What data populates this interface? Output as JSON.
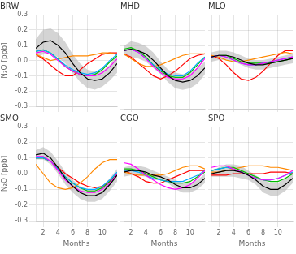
{
  "chart_data": [
    {
      "type": "line",
      "title": "BRW",
      "x": [
        1,
        2,
        3,
        4,
        5,
        6,
        7,
        8,
        9,
        10,
        11,
        12
      ],
      "xlim": [
        1,
        12
      ],
      "ylim": [
        -0.3,
        0.3
      ],
      "xticks": [
        2,
        4,
        6,
        8,
        10
      ],
      "yticks": [
        -0.3,
        -0.2,
        -0.1,
        {
          "value": 0.0,
          "label": "0.0"
        },
        0.1,
        0.2,
        0.3
      ],
      "grid": true,
      "tick_labels": "y",
      "ylabel": "N₂O [ppb]",
      "series": [
        {
          "type": "band",
          "color": "#b0b0b0",
          "lower": [
            0.02,
            0.04,
            0.05,
            0.02,
            -0.02,
            -0.08,
            -0.14,
            -0.18,
            -0.19,
            -0.17,
            -0.13,
            -0.08
          ],
          "upper": [
            0.14,
            0.2,
            0.21,
            0.18,
            0.12,
            0.04,
            -0.02,
            -0.06,
            -0.07,
            -0.07,
            -0.03,
            0.04
          ]
        },
        {
          "color": "#ff0000",
          "values": [
            0.04,
            0.01,
            -0.03,
            -0.07,
            -0.1,
            -0.1,
            -0.06,
            -0.02,
            0.01,
            0.04,
            0.05,
            0.05
          ]
        },
        {
          "color": "#ff8800",
          "values": [
            0.04,
            0.02,
            0.0,
            0.01,
            0.02,
            0.03,
            0.03,
            0.03,
            0.04,
            0.05,
            0.05,
            0.04
          ]
        },
        {
          "color": "#00bb00",
          "values": [
            0.06,
            0.07,
            0.05,
            0.01,
            -0.04,
            -0.07,
            -0.09,
            -0.1,
            -0.09,
            -0.06,
            -0.01,
            0.03
          ]
        },
        {
          "color": "#00aaff",
          "values": [
            0.06,
            0.07,
            0.05,
            0.01,
            -0.03,
            -0.06,
            -0.08,
            -0.09,
            -0.08,
            -0.05,
            0.0,
            0.04
          ]
        },
        {
          "color": "#ff00ff",
          "values": [
            0.05,
            0.06,
            0.04,
            0.0,
            -0.04,
            -0.07,
            -0.09,
            -0.1,
            -0.1,
            -0.08,
            -0.04,
            0.01
          ]
        },
        {
          "color": "#000000",
          "values": [
            0.08,
            0.12,
            0.13,
            0.1,
            0.05,
            -0.02,
            -0.08,
            -0.12,
            -0.13,
            -0.12,
            -0.08,
            -0.02
          ]
        }
      ]
    },
    {
      "type": "line",
      "title": "MHD",
      "x": [
        1,
        2,
        3,
        4,
        5,
        6,
        7,
        8,
        9,
        10,
        11,
        12
      ],
      "xlim": [
        1,
        12
      ],
      "ylim": [
        -0.3,
        0.3
      ],
      "xticks": [
        2,
        4,
        6,
        8,
        10
      ],
      "yticks": [
        -0.3,
        -0.2,
        -0.1,
        {
          "value": 0.0,
          "label": "0.0"
        },
        0.1,
        0.2,
        0.3
      ],
      "grid": true,
      "tick_labels": false,
      "series": [
        {
          "type": "band",
          "color": "#b0b0b0",
          "lower": [
            0.04,
            0.03,
            0.02,
            0.0,
            -0.04,
            -0.08,
            -0.13,
            -0.17,
            -0.18,
            -0.17,
            -0.14,
            -0.08
          ],
          "upper": [
            0.1,
            0.13,
            0.12,
            0.1,
            0.06,
            0.0,
            -0.05,
            -0.07,
            -0.08,
            -0.07,
            -0.04,
            0.0
          ]
        },
        {
          "color": "#ff0000",
          "values": [
            0.05,
            0.03,
            -0.01,
            -0.05,
            -0.09,
            -0.11,
            -0.09,
            -0.06,
            -0.02,
            0.02,
            0.04,
            0.05
          ]
        },
        {
          "color": "#ff8800",
          "values": [
            0.05,
            0.02,
            -0.01,
            -0.03,
            -0.03,
            -0.02,
            0.0,
            0.02,
            0.04,
            0.05,
            0.05,
            0.05
          ]
        },
        {
          "color": "#00bb00",
          "values": [
            0.08,
            0.09,
            0.07,
            0.03,
            -0.02,
            -0.06,
            -0.09,
            -0.1,
            -0.1,
            -0.07,
            -0.02,
            0.03
          ]
        },
        {
          "color": "#00aaff",
          "values": [
            0.07,
            0.08,
            0.06,
            0.02,
            -0.02,
            -0.05,
            -0.08,
            -0.09,
            -0.09,
            -0.06,
            -0.01,
            0.03
          ]
        },
        {
          "color": "#ff00ff",
          "values": [
            0.07,
            0.08,
            0.06,
            0.02,
            -0.03,
            -0.07,
            -0.1,
            -0.11,
            -0.11,
            -0.09,
            -0.04,
            0.02
          ]
        },
        {
          "color": "#000000",
          "values": [
            0.07,
            0.08,
            0.07,
            0.05,
            0.01,
            -0.04,
            -0.09,
            -0.12,
            -0.13,
            -0.12,
            -0.09,
            -0.04
          ]
        }
      ]
    },
    {
      "type": "line",
      "title": "MLO",
      "x": [
        1,
        2,
        3,
        4,
        5,
        6,
        7,
        8,
        9,
        10,
        11,
        12
      ],
      "xlim": [
        1,
        12
      ],
      "ylim": [
        -0.3,
        0.3
      ],
      "xticks": [
        2,
        4,
        6,
        8,
        10
      ],
      "yticks": [
        -0.3,
        -0.2,
        -0.1,
        {
          "value": 0.0,
          "label": "0.0"
        },
        0.1,
        0.2,
        0.3
      ],
      "grid": true,
      "tick_labels": false,
      "series": [
        {
          "type": "band",
          "color": "#b0b0b0",
          "lower": [
            0.0,
            0.01,
            0.01,
            0.0,
            -0.02,
            -0.04,
            -0.05,
            -0.05,
            -0.04,
            -0.03,
            -0.02,
            -0.01
          ],
          "upper": [
            0.06,
            0.07,
            0.07,
            0.06,
            0.04,
            0.02,
            0.01,
            0.01,
            0.02,
            0.03,
            0.04,
            0.05
          ]
        },
        {
          "color": "#ff0000",
          "values": [
            0.04,
            0.02,
            -0.02,
            -0.07,
            -0.11,
            -0.12,
            -0.1,
            -0.06,
            -0.01,
            0.04,
            0.07,
            0.07
          ]
        },
        {
          "color": "#ff8800",
          "values": [
            0.04,
            0.03,
            0.01,
            0.0,
            0.0,
            0.01,
            0.02,
            0.03,
            0.04,
            0.05,
            0.06,
            0.05
          ]
        },
        {
          "color": "#00bb00",
          "values": [
            0.03,
            0.04,
            0.04,
            0.02,
            0.0,
            -0.01,
            -0.01,
            -0.01,
            -0.01,
            0.0,
            0.01,
            0.02
          ]
        },
        {
          "color": "#00aaff",
          "values": [
            0.03,
            0.04,
            0.03,
            0.01,
            -0.01,
            -0.02,
            -0.02,
            -0.01,
            0.0,
            0.01,
            0.02,
            0.03
          ]
        },
        {
          "color": "#ff00ff",
          "values": [
            0.03,
            0.04,
            0.03,
            0.01,
            -0.01,
            -0.02,
            -0.02,
            -0.01,
            0.0,
            0.01,
            0.02,
            0.03
          ]
        },
        {
          "color": "#000000",
          "values": [
            0.03,
            0.04,
            0.04,
            0.03,
            0.01,
            -0.01,
            -0.02,
            -0.02,
            -0.01,
            0.0,
            0.01,
            0.02
          ]
        }
      ]
    },
    {
      "type": "line",
      "title": "SMO",
      "x": [
        1,
        2,
        3,
        4,
        5,
        6,
        7,
        8,
        9,
        10,
        11,
        12
      ],
      "xlim": [
        1,
        12
      ],
      "ylim": [
        -0.3,
        0.3
      ],
      "xticks": [
        2,
        4,
        6,
        8,
        10
      ],
      "yticks": [
        -0.3,
        -0.2,
        -0.1,
        {
          "value": 0.0,
          "label": "0.0"
        },
        0.1,
        0.2,
        0.3
      ],
      "grid": true,
      "tick_labels": true,
      "xlabel": "Months",
      "ylabel": "N₂O [ppb]",
      "series": [
        {
          "type": "band",
          "color": "#b0b0b0",
          "lower": [
            0.09,
            0.09,
            0.06,
            0.0,
            -0.07,
            -0.12,
            -0.16,
            -0.18,
            -0.18,
            -0.16,
            -0.11,
            -0.05
          ],
          "upper": [
            0.15,
            0.17,
            0.14,
            0.08,
            0.01,
            -0.04,
            -0.08,
            -0.1,
            -0.1,
            -0.08,
            -0.03,
            0.03
          ]
        },
        {
          "color": "#ff0000",
          "values": [
            0.1,
            0.1,
            0.08,
            0.04,
            0.0,
            -0.03,
            -0.06,
            -0.08,
            -0.09,
            -0.08,
            -0.05,
            -0.01
          ]
        },
        {
          "color": "#ff8800",
          "values": [
            0.06,
            0.0,
            -0.06,
            -0.09,
            -0.1,
            -0.09,
            -0.06,
            -0.02,
            0.03,
            0.07,
            0.09,
            0.09
          ]
        },
        {
          "color": "#00bb00",
          "values": [
            0.1,
            0.1,
            0.08,
            0.03,
            -0.02,
            -0.06,
            -0.09,
            -0.11,
            -0.11,
            -0.09,
            -0.05,
            0.0
          ]
        },
        {
          "color": "#00aaff",
          "values": [
            0.1,
            0.1,
            0.08,
            0.03,
            -0.02,
            -0.06,
            -0.09,
            -0.1,
            -0.1,
            -0.08,
            -0.04,
            0.01
          ]
        },
        {
          "color": "#ff00ff",
          "values": [
            0.11,
            0.11,
            0.08,
            0.02,
            -0.04,
            -0.08,
            -0.11,
            -0.12,
            -0.12,
            -0.1,
            -0.06,
            0.0
          ]
        },
        {
          "color": "#000000",
          "values": [
            0.12,
            0.13,
            0.1,
            0.04,
            -0.03,
            -0.08,
            -0.12,
            -0.14,
            -0.14,
            -0.12,
            -0.07,
            -0.01
          ]
        }
      ]
    },
    {
      "type": "line",
      "title": "CGO",
      "x": [
        1,
        2,
        3,
        4,
        5,
        6,
        7,
        8,
        9,
        10,
        11,
        12
      ],
      "xlim": [
        1,
        12
      ],
      "ylim": [
        -0.3,
        0.3
      ],
      "xticks": [
        2,
        4,
        6,
        8,
        10
      ],
      "yticks": [
        -0.3,
        -0.2,
        -0.1,
        {
          "value": 0.0,
          "label": "0.0"
        },
        0.1,
        0.2,
        0.3
      ],
      "grid": true,
      "tick_labels": "x",
      "xlabel": "Months",
      "series": [
        {
          "type": "band",
          "color": "#b0b0b0",
          "lower": [
            -0.02,
            -0.01,
            -0.01,
            -0.02,
            -0.04,
            -0.04,
            -0.06,
            -0.1,
            -0.12,
            -0.12,
            -0.1,
            -0.06
          ],
          "upper": [
            0.04,
            0.05,
            0.05,
            0.04,
            0.02,
            0.0,
            -0.02,
            -0.04,
            -0.06,
            -0.06,
            -0.04,
            0.0
          ]
        },
        {
          "color": "#ff0000",
          "values": [
            0.02,
            0.0,
            -0.02,
            -0.05,
            -0.06,
            -0.06,
            -0.04,
            -0.02,
            0.0,
            0.02,
            0.02,
            0.02
          ]
        },
        {
          "color": "#ff8800",
          "values": [
            0.01,
            0.0,
            -0.01,
            -0.01,
            -0.01,
            -0.01,
            0.0,
            0.02,
            0.04,
            0.05,
            0.05,
            0.03
          ]
        },
        {
          "color": "#00bb00",
          "values": [
            0.03,
            0.03,
            0.02,
            0.0,
            -0.02,
            -0.04,
            -0.05,
            -0.06,
            -0.06,
            -0.05,
            -0.02,
            0.01
          ]
        },
        {
          "color": "#00aaff",
          "values": [
            0.02,
            0.02,
            0.01,
            -0.01,
            -0.03,
            -0.04,
            -0.05,
            -0.05,
            -0.05,
            -0.03,
            -0.01,
            0.02
          ]
        },
        {
          "color": "#ff00ff",
          "values": [
            0.07,
            0.06,
            0.03,
            -0.01,
            -0.04,
            -0.07,
            -0.09,
            -0.1,
            -0.09,
            -0.07,
            -0.03,
            0.02
          ]
        },
        {
          "color": "#000000",
          "values": [
            0.01,
            0.02,
            0.02,
            0.01,
            -0.01,
            -0.02,
            -0.04,
            -0.07,
            -0.09,
            -0.09,
            -0.07,
            -0.03
          ]
        }
      ]
    },
    {
      "type": "line",
      "title": "SPO",
      "x": [
        1,
        2,
        3,
        4,
        5,
        6,
        7,
        8,
        9,
        10,
        11,
        12
      ],
      "xlim": [
        1,
        12
      ],
      "ylim": [
        -0.3,
        0.3
      ],
      "xticks": [
        2,
        4,
        6,
        8,
        10
      ],
      "yticks": [
        -0.3,
        -0.2,
        -0.1,
        {
          "value": 0.0,
          "label": "0.0"
        },
        0.1,
        0.2,
        0.3
      ],
      "grid": true,
      "tick_labels": "x",
      "xlabel": "Months",
      "series": [
        {
          "type": "band",
          "color": "#b0b0b0",
          "lower": [
            -0.02,
            -0.02,
            -0.02,
            -0.02,
            -0.03,
            -0.04,
            -0.07,
            -0.12,
            -0.14,
            -0.14,
            -0.11,
            -0.06
          ],
          "upper": [
            0.02,
            0.04,
            0.06,
            0.06,
            0.05,
            0.02,
            -0.01,
            -0.04,
            -0.06,
            -0.06,
            -0.03,
            0.0
          ]
        },
        {
          "color": "#ff0000",
          "values": [
            -0.01,
            -0.01,
            -0.01,
            0.0,
            0.0,
            0.0,
            0.0,
            0.0,
            0.01,
            0.01,
            0.01,
            0.0
          ]
        },
        {
          "color": "#ff8800",
          "values": [
            0.01,
            0.01,
            0.02,
            0.03,
            0.04,
            0.05,
            0.05,
            0.05,
            0.04,
            0.04,
            0.03,
            0.02
          ]
        },
        {
          "color": "#00bb00",
          "values": [
            0.02,
            0.03,
            0.04,
            0.04,
            0.02,
            0.0,
            -0.02,
            -0.04,
            -0.05,
            -0.05,
            -0.03,
            0.0
          ]
        },
        {
          "color": "#00aaff",
          "values": [
            0.02,
            0.03,
            0.04,
            0.03,
            0.01,
            -0.01,
            -0.03,
            -0.04,
            -0.04,
            -0.03,
            -0.01,
            0.01
          ]
        },
        {
          "color": "#ff00ff",
          "values": [
            0.04,
            0.05,
            0.05,
            0.03,
            0.01,
            -0.01,
            -0.03,
            -0.04,
            -0.04,
            -0.03,
            -0.01,
            0.02
          ]
        },
        {
          "color": "#000000",
          "values": [
            0.0,
            0.01,
            0.02,
            0.02,
            0.01,
            -0.01,
            -0.04,
            -0.08,
            -0.1,
            -0.1,
            -0.07,
            -0.03
          ]
        }
      ]
    }
  ]
}
